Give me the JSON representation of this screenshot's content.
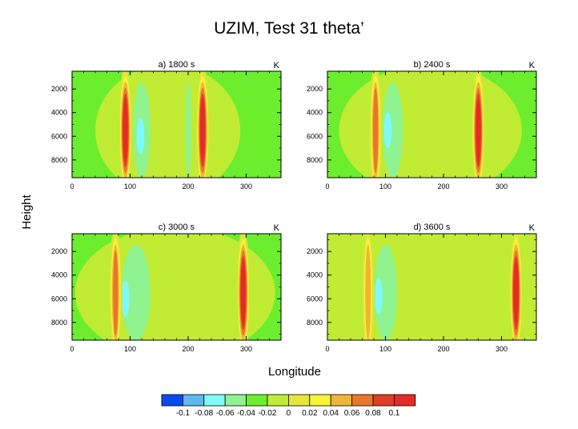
{
  "title": "UZIM, Test 31 theta’",
  "xlabel": "Longitude",
  "ylabel": "Height",
  "chart_data": [
    {
      "type": "heatmap",
      "panel_title": "a) 1800 s",
      "units": "K",
      "xlim": [
        0,
        360
      ],
      "ylim": [
        9500,
        500
      ],
      "xticks": [
        "0",
        "100",
        "200",
        "300"
      ],
      "yticks": [
        "2000",
        "4000",
        "6000",
        "8000"
      ],
      "background_level": -0.04,
      "features": [
        {
          "kind": "envelope",
          "from_lon": 40,
          "to_lon": 290,
          "level": -0.02
        },
        {
          "kind": "warm_band",
          "lon": 92,
          "peak": 0.1
        },
        {
          "kind": "warm_band",
          "lon": 225,
          "peak": 0.1
        },
        {
          "kind": "cold_region",
          "lon_from": 105,
          "lon_to": 135,
          "level": -0.06
        },
        {
          "kind": "cold_core",
          "lon": 118,
          "height": 6000,
          "level": -0.08
        },
        {
          "kind": "cold_region",
          "lon_from": 195,
          "lon_to": 205,
          "level": -0.06
        }
      ]
    },
    {
      "type": "heatmap",
      "panel_title": "b) 2400 s",
      "units": "K",
      "xlim": [
        0,
        360
      ],
      "ylim": [
        9500,
        500
      ],
      "xticks": [
        "0",
        "100",
        "200",
        "300"
      ],
      "yticks": [
        "2000",
        "4000",
        "6000",
        "8000"
      ],
      "background_level": -0.04,
      "features": [
        {
          "kind": "envelope",
          "from_lon": 20,
          "to_lon": 335,
          "level": -0.02
        },
        {
          "kind": "warm_band",
          "lon": 83,
          "peak": 0.06
        },
        {
          "kind": "warm_band",
          "lon": 260,
          "peak": 0.1
        },
        {
          "kind": "cold_region",
          "lon_from": 95,
          "lon_to": 130,
          "level": -0.06
        },
        {
          "kind": "cold_core",
          "lon": 104,
          "height": 5500,
          "level": -0.08
        }
      ]
    },
    {
      "type": "heatmap",
      "panel_title": "c) 3000 s",
      "units": "K",
      "xlim": [
        0,
        360
      ],
      "ylim": [
        9500,
        500
      ],
      "xticks": [
        "0",
        "100",
        "200",
        "300"
      ],
      "yticks": [
        "2000",
        "4000",
        "6000",
        "8000"
      ],
      "background_level": -0.04,
      "features": [
        {
          "kind": "envelope",
          "from_lon": 5,
          "to_lon": 350,
          "level": -0.02
        },
        {
          "kind": "warm_band",
          "lon": 75,
          "peak": 0.06
        },
        {
          "kind": "warm_band",
          "lon": 295,
          "peak": 0.1
        },
        {
          "kind": "cold_region",
          "lon_from": 85,
          "lon_to": 135,
          "level": -0.06
        },
        {
          "kind": "cold_core",
          "lon": 92,
          "height": 6000,
          "level": -0.08
        }
      ]
    },
    {
      "type": "heatmap",
      "panel_title": "d) 3600 s",
      "units": "K",
      "xlim": [
        0,
        360
      ],
      "ylim": [
        9500,
        500
      ],
      "xticks": [
        "0",
        "100",
        "200",
        "300"
      ],
      "yticks": [
        "2000",
        "4000",
        "6000",
        "8000"
      ],
      "background_level": -0.02,
      "features": [
        {
          "kind": "envelope",
          "from_lon": 0,
          "to_lon": 360,
          "level": -0.02
        },
        {
          "kind": "warm_band",
          "lon": 70,
          "peak": 0.04
        },
        {
          "kind": "warm_band",
          "lon": 325,
          "peak": 0.1
        },
        {
          "kind": "cold_region",
          "lon_from": 80,
          "lon_to": 120,
          "level": -0.06
        },
        {
          "kind": "cold_core",
          "lon": 88,
          "height": 5800,
          "level": -0.08
        }
      ]
    }
  ],
  "colorbar": {
    "labels": [
      "-0.1",
      "-0.08",
      "-0.06",
      "-0.04",
      "-0.02",
      "0",
      "0.02",
      "0.04",
      "0.06",
      "0.08",
      "0.1"
    ],
    "colors": [
      "#0a49f2",
      "#5cb8ee",
      "#7ff9f9",
      "#8ff48f",
      "#6cee2e",
      "#c0ec34",
      "#e5e63a",
      "#f6f435",
      "#f0b536",
      "#e8762c",
      "#de3e28",
      "#e82a26"
    ]
  }
}
